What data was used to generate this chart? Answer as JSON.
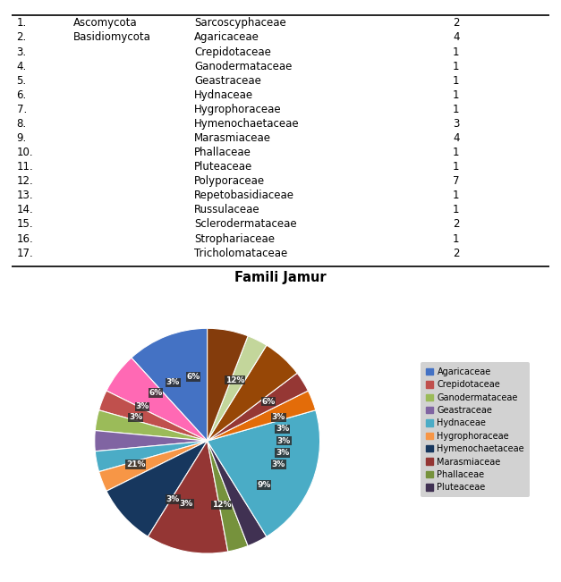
{
  "table": {
    "rows": [
      {
        "num": "1.",
        "division": "Ascomycota",
        "family": "Sarcoscyphaceae",
        "count": 2
      },
      {
        "num": "2.",
        "division": "Basidiomycota",
        "family": "Agaricaceae",
        "count": 4
      },
      {
        "num": "3.",
        "division": "",
        "family": "Crepidotaceae",
        "count": 1
      },
      {
        "num": "4.",
        "division": "",
        "family": "Ganodermataceae",
        "count": 1
      },
      {
        "num": "5.",
        "division": "",
        "family": "Geastraceae",
        "count": 1
      },
      {
        "num": "6.",
        "division": "",
        "family": "Hydnaceae",
        "count": 1
      },
      {
        "num": "7.",
        "division": "",
        "family": "Hygrophoraceae",
        "count": 1
      },
      {
        "num": "8.",
        "division": "",
        "family": "Hymenochaetaceae",
        "count": 3
      },
      {
        "num": "9.",
        "division": "",
        "family": "Marasmiaceae",
        "count": 4
      },
      {
        "num": "10.",
        "division": "",
        "family": "Phallaceae",
        "count": 1
      },
      {
        "num": "11.",
        "division": "",
        "family": "Pluteaceae",
        "count": 1
      },
      {
        "num": "12.",
        "division": "",
        "family": "Polyporaceae",
        "count": 7
      },
      {
        "num": "13.",
        "division": "",
        "family": "Repetobasidiaceae",
        "count": 1
      },
      {
        "num": "14.",
        "division": "",
        "family": "Russulaceae",
        "count": 1
      },
      {
        "num": "15.",
        "division": "",
        "family": "Sclerodermataceae",
        "count": 2
      },
      {
        "num": "16.",
        "division": "",
        "family": "Strophariaceae",
        "count": 1
      },
      {
        "num": "17.",
        "division": "",
        "family": "Tricholomataceae",
        "count": 2
      }
    ]
  },
  "pie": {
    "families": [
      "Agaricaceae",
      "Sarcoscyphaceae",
      "Crepidotaceae",
      "Ganodermataceae",
      "Geastraceae",
      "Hydnaceae",
      "Hygrophoraceae",
      "Hymenochaetaceae",
      "Marasmiaceae",
      "Phallaceae",
      "Pluteaceae",
      "Polyporaceae",
      "Repetobasidiaceae",
      "Russulaceae",
      "Sclerodermataceae",
      "Strophariaceae",
      "Tricholomataceae"
    ],
    "values": [
      4,
      2,
      1,
      1,
      1,
      1,
      1,
      3,
      4,
      1,
      1,
      7,
      1,
      1,
      2,
      1,
      2
    ],
    "colors": [
      "#4472C4",
      "#FF69B4",
      "#C0504D",
      "#9BBB59",
      "#8064A2",
      "#4BACC6",
      "#F79646",
      "#17375E",
      "#943634",
      "#76923C",
      "#403152",
      "#4AACC6",
      "#E36C09",
      "#953734",
      "#974706",
      "#C3D69B",
      "#843C0C"
    ],
    "startangle": 90,
    "title": "Famili Jamur",
    "legend_families": [
      "Agaricaceae",
      "Crepidotaceae",
      "Ganodermataceae",
      "Geastraceae",
      "Hydnaceae",
      "Hygrophoraceae",
      "Hymenochaetaceae",
      "Marasmiaceae",
      "Phallaceae",
      "Pluteaceae"
    ],
    "legend_colors": [
      "#4472C4",
      "#C0504D",
      "#9BBB59",
      "#8064A2",
      "#4BACC6",
      "#F79646",
      "#17375E",
      "#943634",
      "#76923C",
      "#403152"
    ],
    "bg_color": "#A6A6A6"
  }
}
